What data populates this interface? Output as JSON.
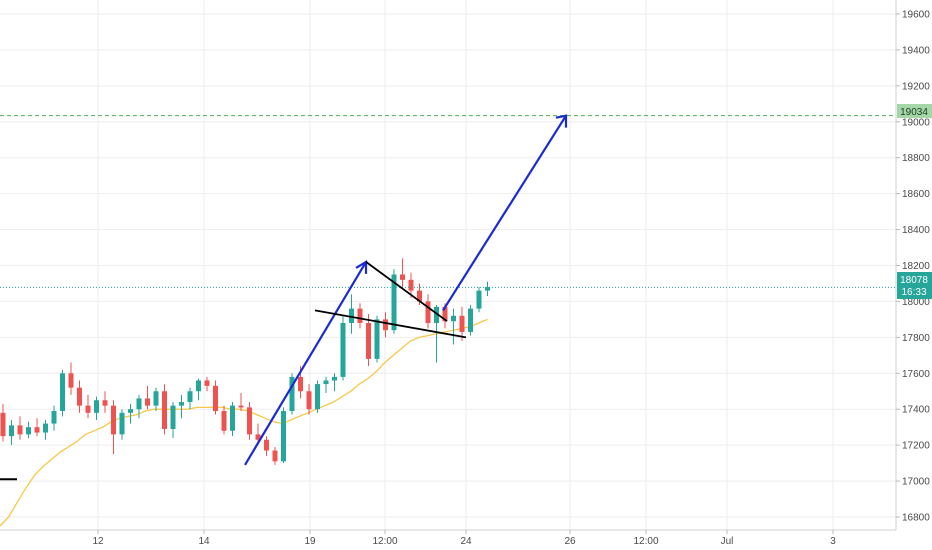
{
  "chart_data": {
    "type": "candlestick",
    "title": "",
    "xlabel": "",
    "ylabel": "",
    "x_tick_labels": [
      "12",
      "14",
      "19",
      "12:00",
      "24",
      "26",
      "12:00",
      "Jul",
      "3"
    ],
    "y_tick_labels": [
      "16800",
      "17000",
      "17200",
      "17400",
      "17600",
      "17800",
      "18000",
      "18200",
      "18400",
      "18600",
      "18800",
      "19000",
      "19200",
      "19400",
      "19600"
    ],
    "ylim": [
      16600,
      19680
    ],
    "grid": true,
    "colors": {
      "up": "#26a69a",
      "down": "#ef5350",
      "ma": "#f7c948",
      "arrow": "#1a2bd6",
      "pattern": "#000000",
      "target": "#4caf50",
      "price": "#26a69a"
    },
    "price_label": "18078",
    "countdown_label": "16:33",
    "target_label": "19034",
    "ohlc": [
      [
        17380,
        17430,
        17220,
        17250
      ],
      [
        17250,
        17340,
        17200,
        17310
      ],
      [
        17310,
        17360,
        17230,
        17260
      ],
      [
        17260,
        17330,
        17240,
        17300
      ],
      [
        17300,
        17350,
        17250,
        17270
      ],
      [
        17270,
        17340,
        17230,
        17320
      ],
      [
        17320,
        17420,
        17280,
        17390
      ],
      [
        17390,
        17620,
        17360,
        17600
      ],
      [
        17600,
        17660,
        17480,
        17520
      ],
      [
        17520,
        17560,
        17380,
        17420
      ],
      [
        17420,
        17480,
        17350,
        17380
      ],
      [
        17380,
        17470,
        17340,
        17450
      ],
      [
        17450,
        17500,
        17380,
        17420
      ],
      [
        17420,
        17450,
        17150,
        17260
      ],
      [
        17260,
        17400,
        17230,
        17380
      ],
      [
        17380,
        17430,
        17320,
        17400
      ],
      [
        17400,
        17480,
        17350,
        17460
      ],
      [
        17460,
        17530,
        17400,
        17420
      ],
      [
        17420,
        17520,
        17390,
        17500
      ],
      [
        17500,
        17540,
        17260,
        17290
      ],
      [
        17290,
        17440,
        17240,
        17420
      ],
      [
        17420,
        17480,
        17350,
        17440
      ],
      [
        17440,
        17520,
        17400,
        17500
      ],
      [
        17500,
        17570,
        17450,
        17560
      ],
      [
        17560,
        17580,
        17500,
        17530
      ],
      [
        17530,
        17560,
        17370,
        17390
      ],
      [
        17390,
        17420,
        17260,
        17280
      ],
      [
        17280,
        17440,
        17250,
        17420
      ],
      [
        17420,
        17490,
        17390,
        17410
      ],
      [
        17410,
        17440,
        17230,
        17260
      ],
      [
        17260,
        17320,
        17200,
        17230
      ],
      [
        17230,
        17250,
        17140,
        17170
      ],
      [
        17170,
        17190,
        17090,
        17110
      ],
      [
        17110,
        17410,
        17100,
        17390
      ],
      [
        17390,
        17600,
        17370,
        17580
      ],
      [
        17580,
        17640,
        17460,
        17500
      ],
      [
        17500,
        17540,
        17370,
        17400
      ],
      [
        17400,
        17560,
        17380,
        17540
      ],
      [
        17540,
        17580,
        17490,
        17560
      ],
      [
        17560,
        17600,
        17500,
        17580
      ],
      [
        17580,
        17920,
        17560,
        17880
      ],
      [
        17880,
        18040,
        17820,
        17960
      ],
      [
        17960,
        17990,
        17850,
        17880
      ],
      [
        17880,
        17930,
        17640,
        17680
      ],
      [
        17680,
        17920,
        17660,
        17900
      ],
      [
        17900,
        17940,
        17800,
        17840
      ],
      [
        17840,
        18180,
        17820,
        18150
      ],
      [
        18150,
        18240,
        18080,
        18120
      ],
      [
        18120,
        18160,
        18020,
        18060
      ],
      [
        18060,
        18100,
        17980,
        18000
      ],
      [
        18000,
        18040,
        17850,
        17880
      ],
      [
        17880,
        17980,
        17660,
        17970
      ],
      [
        17970,
        17990,
        17850,
        17890
      ],
      [
        17890,
        17960,
        17760,
        17920
      ],
      [
        17920,
        17970,
        17780,
        17830
      ],
      [
        17830,
        17980,
        17810,
        17960
      ],
      [
        17960,
        18080,
        17940,
        18060
      ],
      [
        18060,
        18110,
        18030,
        18080
      ]
    ],
    "moving_average": [
      16750,
      16800,
      16880,
      16960,
      17030,
      17080,
      17120,
      17160,
      17190,
      17220,
      17260,
      17280,
      17300,
      17330,
      17350,
      17360,
      17370,
      17390,
      17400,
      17400,
      17400,
      17400,
      17400,
      17410,
      17410,
      17410,
      17410,
      17400,
      17400,
      17390,
      17370,
      17350,
      17330,
      17320,
      17340,
      17360,
      17380,
      17400,
      17420,
      17440,
      17470,
      17500,
      17540,
      17570,
      17610,
      17660,
      17700,
      17740,
      17780,
      17800,
      17810,
      17820,
      17830,
      17840,
      17850,
      17860,
      17880,
      17900
    ]
  }
}
